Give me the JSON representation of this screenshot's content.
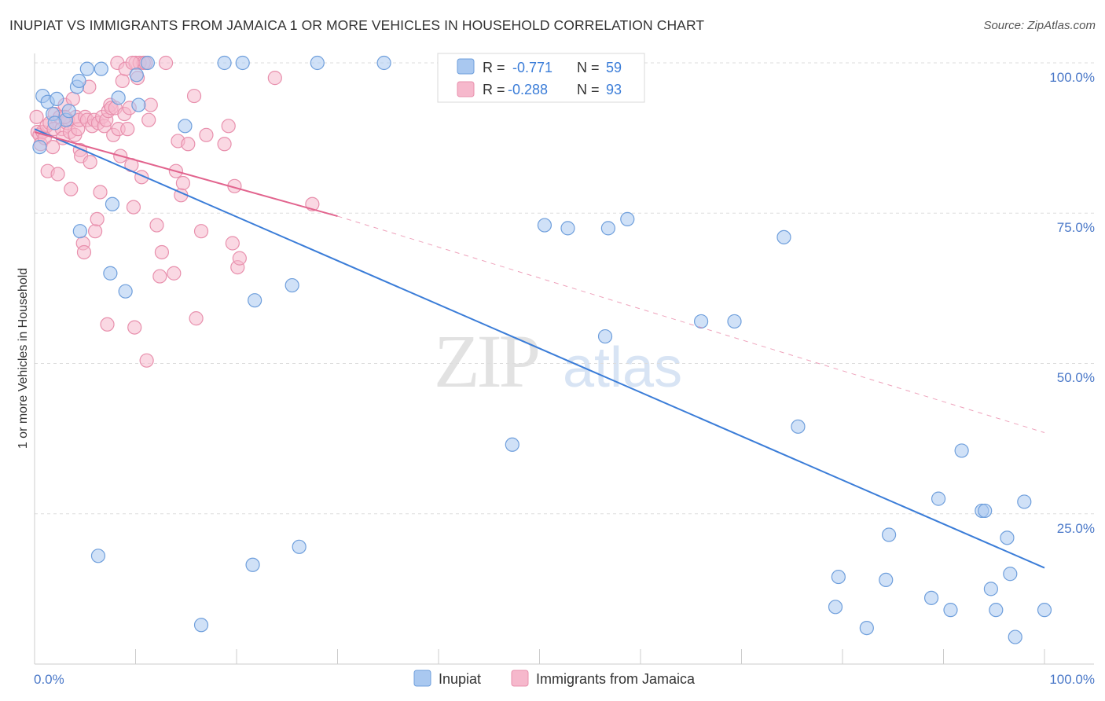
{
  "header": {
    "title": "INUPIAT VS IMMIGRANTS FROM JAMAICA 1 OR MORE VEHICLES IN HOUSEHOLD CORRELATION CHART",
    "source": "Source: ZipAtlas.com"
  },
  "watermark": {
    "zip": "ZIP",
    "atlas": "atlas"
  },
  "colors": {
    "blue_fill": "#a9c8f0",
    "blue_stroke": "#6f9fdc",
    "blue_line": "#3b7dd8",
    "pink_fill": "#f6b8cc",
    "pink_stroke": "#e890ad",
    "pink_line": "#e2648e",
    "tick_label": "#4a78c8",
    "grid": "#dddddd"
  },
  "stats_legend": [
    {
      "r_label": "R =",
      "r_value": "-0.771",
      "n_label": "N =",
      "n_value": "59",
      "series": "Inupiat"
    },
    {
      "r_label": "R =",
      "r_value": "-0.288",
      "n_label": "N =",
      "n_value": "93",
      "series": "Immigrants from Jamaica"
    }
  ],
  "chart_data": {
    "type": "scatter",
    "title": "INUPIAT VS IMMIGRANTS FROM JAMAICA 1 OR MORE VEHICLES IN HOUSEHOLD CORRELATION CHART",
    "xlabel": "",
    "ylabel": "1 or more Vehicles in Household",
    "xlim": [
      0,
      100
    ],
    "ylim": [
      0,
      100
    ],
    "x_tick_labels": [
      "0.0%",
      "100.0%"
    ],
    "y_tick_labels": [
      {
        "value": 100,
        "label": "100.0%"
      },
      {
        "value": 75,
        "label": "75.0%"
      },
      {
        "value": 50,
        "label": "50.0%"
      },
      {
        "value": 25,
        "label": "25.0%"
      }
    ],
    "grid": true,
    "legend": [
      "Inupiat",
      "Immigrants from Jamaica"
    ],
    "series": [
      {
        "name": "Inupiat",
        "color": "blue",
        "trend": {
          "x0": 0,
          "y0": 89,
          "x1": 100,
          "y1": 16
        },
        "points": [
          [
            0.5,
            86
          ],
          [
            0.8,
            94.5
          ],
          [
            1.3,
            93.5
          ],
          [
            1.8,
            91.5
          ],
          [
            2.2,
            94
          ],
          [
            3.1,
            90.5
          ],
          [
            3.4,
            92
          ],
          [
            4.2,
            96
          ],
          [
            4.4,
            97
          ],
          [
            5.2,
            99
          ],
          [
            6.6,
            99
          ],
          [
            8.3,
            94.2
          ],
          [
            10.3,
            93
          ],
          [
            10.1,
            98
          ],
          [
            11.2,
            100
          ],
          [
            14.9,
            89.5
          ],
          [
            18.8,
            100
          ],
          [
            20.6,
            100
          ],
          [
            28,
            100
          ],
          [
            34.6,
            100
          ],
          [
            4.5,
            72
          ],
          [
            7.7,
            76.5
          ],
          [
            7.5,
            65
          ],
          [
            9,
            62
          ],
          [
            21.8,
            60.5
          ],
          [
            25.5,
            63
          ],
          [
            6.3,
            18
          ],
          [
            16.5,
            6.5
          ],
          [
            21.6,
            16.5
          ],
          [
            26.2,
            19.5
          ],
          [
            47.3,
            36.5
          ],
          [
            50.5,
            73
          ],
          [
            52.8,
            72.5
          ],
          [
            56.5,
            54.5
          ],
          [
            56.8,
            72.5
          ],
          [
            58.7,
            74
          ],
          [
            66,
            57
          ],
          [
            69.3,
            57
          ],
          [
            74.2,
            71
          ],
          [
            75.6,
            39.5
          ],
          [
            79.3,
            9.5
          ],
          [
            79.6,
            14.5
          ],
          [
            82.4,
            6
          ],
          [
            84.3,
            14
          ],
          [
            84.6,
            21.5
          ],
          [
            88.8,
            11
          ],
          [
            89.5,
            27.5
          ],
          [
            90.7,
            9
          ],
          [
            91.8,
            35.5
          ],
          [
            93.8,
            25.5
          ],
          [
            94.1,
            25.5
          ],
          [
            94.7,
            12.5
          ],
          [
            95.2,
            9
          ],
          [
            96.3,
            21
          ],
          [
            96.6,
            15
          ],
          [
            97.1,
            4.5
          ],
          [
            98,
            27
          ],
          [
            100,
            9
          ],
          [
            2,
            90
          ]
        ]
      },
      {
        "name": "Immigrants from Jamaica",
        "color": "pink",
        "trend": {
          "x0": 0,
          "y0": 88.5,
          "x1": 30,
          "y1": 74.5,
          "dash_x1": 100,
          "dash_y1": 38.5
        },
        "points": [
          [
            0.2,
            91
          ],
          [
            0.3,
            88.5
          ],
          [
            0.5,
            88
          ],
          [
            0.6,
            86.5
          ],
          [
            0.8,
            88.5
          ],
          [
            1,
            87.5
          ],
          [
            1.2,
            89.5
          ],
          [
            1.3,
            82
          ],
          [
            1.5,
            90
          ],
          [
            1.8,
            86
          ],
          [
            1.9,
            89
          ],
          [
            2,
            91.5
          ],
          [
            2.3,
            81.5
          ],
          [
            2.5,
            91
          ],
          [
            2.7,
            89
          ],
          [
            2.8,
            87.5
          ],
          [
            3,
            93
          ],
          [
            3.2,
            90
          ],
          [
            3.3,
            90.5
          ],
          [
            3.5,
            88.5
          ],
          [
            3.6,
            79
          ],
          [
            3.8,
            94
          ],
          [
            4,
            88
          ],
          [
            4.1,
            91
          ],
          [
            4.3,
            89
          ],
          [
            4.4,
            90.5
          ],
          [
            4.5,
            85.5
          ],
          [
            4.6,
            84.5
          ],
          [
            4.8,
            70
          ],
          [
            4.9,
            68.5
          ],
          [
            5,
            91
          ],
          [
            5.2,
            90.5
          ],
          [
            5.4,
            96
          ],
          [
            5.5,
            83.5
          ],
          [
            5.7,
            89.5
          ],
          [
            5.9,
            90.5
          ],
          [
            6,
            72
          ],
          [
            6.2,
            74
          ],
          [
            6.3,
            90
          ],
          [
            6.5,
            78.5
          ],
          [
            6.7,
            91
          ],
          [
            6.9,
            89.5
          ],
          [
            7.1,
            90.5
          ],
          [
            7.3,
            92
          ],
          [
            7.5,
            93
          ],
          [
            7.6,
            92.5
          ],
          [
            7.8,
            88
          ],
          [
            8,
            92.5
          ],
          [
            8.2,
            100
          ],
          [
            8.3,
            89
          ],
          [
            8.5,
            84.5
          ],
          [
            8.7,
            97
          ],
          [
            8.9,
            91.5
          ],
          [
            9,
            99
          ],
          [
            9.2,
            89
          ],
          [
            9.4,
            92.5
          ],
          [
            9.6,
            83
          ],
          [
            9.8,
            76
          ],
          [
            9.9,
            56
          ],
          [
            10,
            100
          ],
          [
            10.2,
            97.5
          ],
          [
            10.4,
            100
          ],
          [
            10.6,
            81
          ],
          [
            10.8,
            100
          ],
          [
            11,
            100
          ],
          [
            11.1,
            50.5
          ],
          [
            11.3,
            90.5
          ],
          [
            11.5,
            93
          ],
          [
            12.1,
            73
          ],
          [
            12.4,
            64.5
          ],
          [
            12.6,
            68.5
          ],
          [
            13.8,
            65
          ],
          [
            14,
            82
          ],
          [
            14.2,
            87
          ],
          [
            14.5,
            78
          ],
          [
            14.7,
            80
          ],
          [
            15.2,
            86.5
          ],
          [
            15.8,
            94.5
          ],
          [
            16,
            57.5
          ],
          [
            16.5,
            72
          ],
          [
            17,
            88
          ],
          [
            18.8,
            86.5
          ],
          [
            19.2,
            89.5
          ],
          [
            19.6,
            70
          ],
          [
            19.8,
            79.5
          ],
          [
            20.1,
            66
          ],
          [
            20.3,
            67.5
          ],
          [
            23.8,
            97.5
          ],
          [
            27.5,
            76.5
          ],
          [
            3,
            91
          ],
          [
            7.2,
            56.5
          ],
          [
            9.7,
            100
          ],
          [
            13,
            100
          ]
        ]
      }
    ]
  },
  "bottom_legend": [
    {
      "label": "Inupiat",
      "color": "blue"
    },
    {
      "label": "Immigrants from Jamaica",
      "color": "pink"
    }
  ]
}
